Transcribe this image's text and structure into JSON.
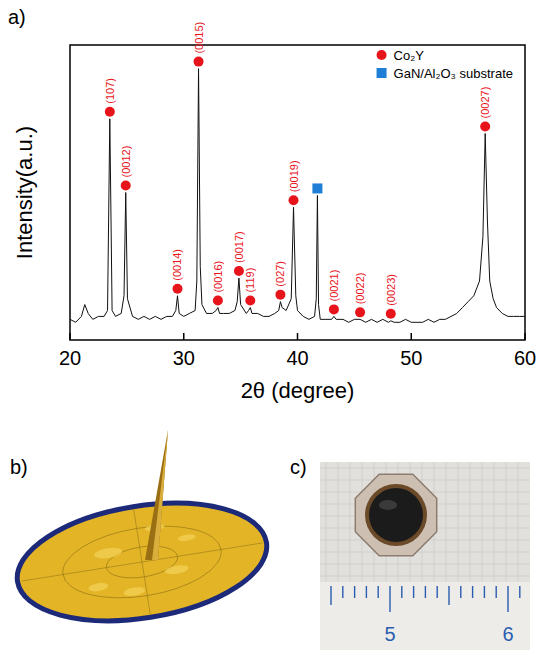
{
  "chart_data": {
    "type": "line",
    "x_label": "2θ (degree)",
    "y_label": "Intensity(a.u.)",
    "panel_label": "a)",
    "xlim": [
      20,
      60
    ],
    "xticks": [
      20,
      30,
      40,
      50,
      60
    ],
    "ylim": [
      0,
      100
    ],
    "tick_labels": "x",
    "grid": false,
    "legend": "top-right",
    "series": [
      {
        "type": "line",
        "color": "#111111",
        "x": [
          20,
          20.5,
          21,
          21.3,
          21.6,
          22,
          22.5,
          23,
          23.3,
          23.5,
          23.7,
          24,
          24.5,
          24.75,
          24.9,
          25.05,
          25.5,
          26,
          26.5,
          27,
          27.5,
          28,
          28.5,
          29,
          29.3,
          29.45,
          29.6,
          30,
          30.5,
          31,
          31.15,
          31.3,
          31.45,
          31.6,
          32,
          32.5,
          32.85,
          33,
          33.15,
          33.5,
          34,
          34.5,
          34.7,
          34.85,
          35,
          35.5,
          35.7,
          35.85,
          36,
          36.5,
          37,
          37.5,
          38,
          38.35,
          38.5,
          38.65,
          39,
          39.45,
          39.65,
          39.85,
          40,
          40.5,
          41,
          41.5,
          41.65,
          41.75,
          41.85,
          42,
          42.5,
          43,
          43.2,
          43.4,
          44,
          44.5,
          45,
          45.5,
          46,
          46.5,
          47,
          47.5,
          48,
          48.2,
          48.5,
          49,
          49.5,
          50,
          50.5,
          51,
          51.5,
          52,
          52.5,
          53,
          53.5,
          54,
          54.5,
          55,
          55.5,
          56,
          56.3,
          56.5,
          56.7,
          56.9,
          57.2,
          57.5,
          58,
          58.5,
          59,
          59.5,
          60
        ],
        "values": [
          7,
          6,
          8,
          12,
          9,
          7,
          8,
          8,
          10,
          75,
          10,
          8,
          9,
          15,
          50,
          14,
          8,
          7,
          8,
          7,
          8,
          7,
          8,
          8,
          10,
          15,
          9,
          8,
          9,
          10,
          20,
          92,
          25,
          12,
          9,
          9,
          10,
          11,
          9,
          9,
          9,
          10,
          13,
          21,
          12,
          9,
          10,
          11,
          9,
          9,
          8,
          8,
          9,
          10,
          13,
          11,
          10,
          14,
          45,
          15,
          10,
          8,
          7,
          8,
          14,
          49,
          12,
          7,
          7,
          7,
          8,
          7,
          7,
          6,
          7,
          7,
          6,
          7,
          6,
          7,
          6,
          6.5,
          6,
          6,
          7,
          6,
          6,
          6,
          7,
          6,
          7,
          7,
          8,
          9,
          11,
          13,
          15,
          20,
          35,
          70,
          40,
          20,
          14,
          11,
          9,
          8,
          8,
          8,
          8
        ]
      },
      {
        "type": "scatter",
        "name": "Co₂Y",
        "color": "#e8141b",
        "marker": "circle",
        "x": [
          23.5,
          24.9,
          29.45,
          31.3,
          33.0,
          34.85,
          35.85,
          38.5,
          39.65,
          43.2,
          45.5,
          48.2,
          56.5
        ],
        "values": [
          75,
          50,
          15,
          92,
          11,
          21,
          11,
          13,
          45,
          8,
          7,
          6.5,
          70
        ],
        "labels": [
          "(107)",
          "(0012)",
          "(0014)",
          "(0015)",
          "(0016)",
          "(0017)",
          "(119)",
          "(027)",
          "(0019)",
          "(0021)",
          "(0022)",
          "(0023)",
          "(0027)"
        ]
      },
      {
        "type": "scatter",
        "name": "GaN/Al₂O₃ substrate",
        "color": "#1f7fd6",
        "marker": "square",
        "x": [
          41.75
        ],
        "values": [
          49
        ]
      }
    ]
  },
  "figure": {
    "panel_labels": [
      "b)",
      "c)"
    ],
    "ruler_labels": [
      "5",
      "6"
    ]
  }
}
